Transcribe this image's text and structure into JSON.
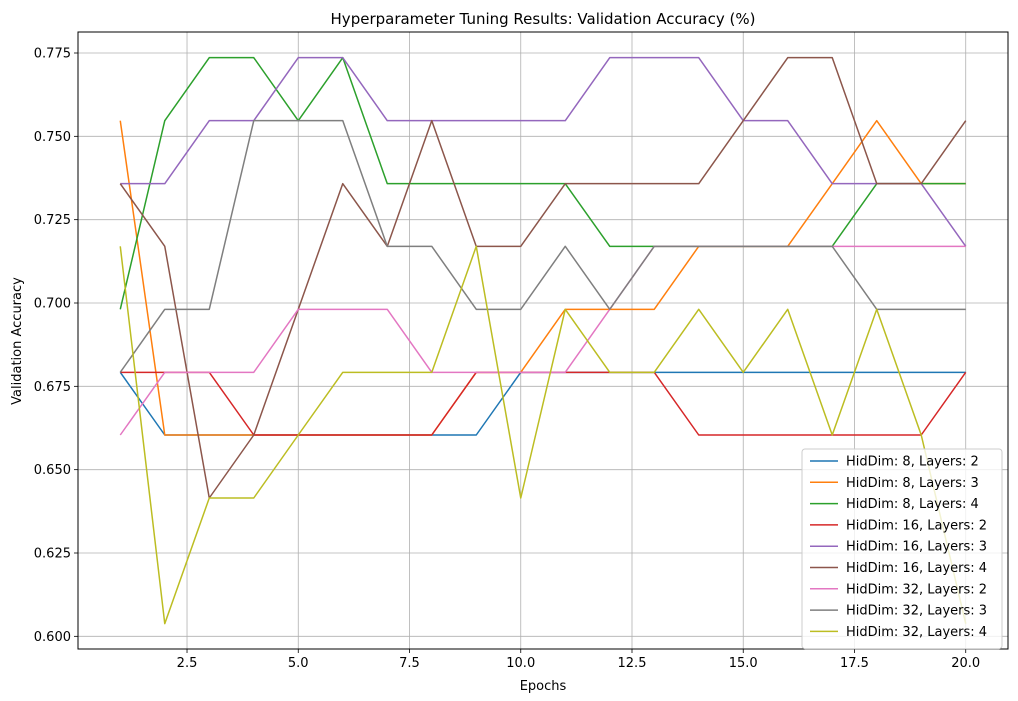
{
  "chart_data": {
    "type": "line",
    "title": "Hyperparameter Tuning Results: Validation Accuracy (%)",
    "xlabel": "Epochs",
    "ylabel": "Validation Accuracy",
    "xlim": [
      0.05,
      20.95
    ],
    "ylim": [
      0.5962,
      0.7813
    ],
    "xticks": [
      2.5,
      5.0,
      7.5,
      10.0,
      12.5,
      15.0,
      17.5,
      20.0
    ],
    "xtick_labels": [
      "2.5",
      "5.0",
      "7.5",
      "10.0",
      "12.5",
      "15.0",
      "17.5",
      "20.0"
    ],
    "yticks": [
      0.6,
      0.625,
      0.65,
      0.675,
      0.7,
      0.725,
      0.75,
      0.775
    ],
    "ytick_labels": [
      "0.600",
      "0.625",
      "0.650",
      "0.675",
      "0.700",
      "0.725",
      "0.750",
      "0.775"
    ],
    "grid": true,
    "legend_position": "lower-right",
    "x": [
      1,
      2,
      3,
      4,
      5,
      6,
      7,
      8,
      9,
      10,
      11,
      12,
      13,
      14,
      15,
      16,
      17,
      18,
      19,
      20
    ],
    "series": [
      {
        "name": "HidDim: 8, Layers: 2",
        "color": "#1f77b4",
        "values": [
          0.6792,
          0.6604,
          0.6604,
          0.6604,
          0.6604,
          0.6604,
          0.6604,
          0.6604,
          0.6604,
          0.6792,
          0.6792,
          0.6792,
          0.6792,
          0.6792,
          0.6792,
          0.6792,
          0.6792,
          0.6792,
          0.6792,
          0.6792
        ]
      },
      {
        "name": "HidDim: 8, Layers: 3",
        "color": "#ff7f0e",
        "values": [
          0.7547,
          0.6604,
          0.6604,
          0.6604,
          0.6604,
          0.6604,
          0.6604,
          0.6604,
          0.6792,
          0.6792,
          0.6981,
          0.6981,
          0.6981,
          0.717,
          0.717,
          0.717,
          0.7358,
          0.7547,
          0.7358,
          0.7358
        ]
      },
      {
        "name": "HidDim: 8, Layers: 4",
        "color": "#2ca02c",
        "values": [
          0.6981,
          0.7547,
          0.7736,
          0.7736,
          0.7547,
          0.7736,
          0.7358,
          0.7358,
          0.7358,
          0.7358,
          0.7358,
          0.717,
          0.717,
          0.717,
          0.717,
          0.717,
          0.717,
          0.7358,
          0.7358,
          0.7358
        ]
      },
      {
        "name": "HidDim: 16, Layers: 2",
        "color": "#d62728",
        "values": [
          0.6792,
          0.6792,
          0.6792,
          0.6604,
          0.6604,
          0.6604,
          0.6604,
          0.6604,
          0.6792,
          0.6792,
          0.6792,
          0.6792,
          0.6792,
          0.6604,
          0.6604,
          0.6604,
          0.6604,
          0.6604,
          0.6604,
          0.6792
        ]
      },
      {
        "name": "HidDim: 16, Layers: 3",
        "color": "#9467bd",
        "values": [
          0.7358,
          0.7358,
          0.7547,
          0.7547,
          0.7736,
          0.7736,
          0.7547,
          0.7547,
          0.7547,
          0.7547,
          0.7547,
          0.7736,
          0.7736,
          0.7736,
          0.7547,
          0.7547,
          0.7358,
          0.7358,
          0.7358,
          0.717
        ]
      },
      {
        "name": "HidDim: 16, Layers: 4",
        "color": "#8c564b",
        "values": [
          0.7358,
          0.717,
          0.6415,
          0.6604,
          0.6981,
          0.7358,
          0.717,
          0.7547,
          0.717,
          0.717,
          0.7358,
          0.7358,
          0.7358,
          0.7358,
          0.7547,
          0.7736,
          0.7736,
          0.7358,
          0.7358,
          0.7547
        ]
      },
      {
        "name": "HidDim: 32, Layers: 2",
        "color": "#e377c2",
        "values": [
          0.6604,
          0.6792,
          0.6792,
          0.6792,
          0.6981,
          0.6981,
          0.6981,
          0.6792,
          0.6792,
          0.6792,
          0.6792,
          0.6981,
          0.717,
          0.717,
          0.717,
          0.717,
          0.717,
          0.717,
          0.717,
          0.717
        ]
      },
      {
        "name": "HidDim: 32, Layers: 3",
        "color": "#7f7f7f",
        "values": [
          0.6792,
          0.6981,
          0.6981,
          0.7547,
          0.7547,
          0.7547,
          0.717,
          0.717,
          0.6981,
          0.6981,
          0.717,
          0.6981,
          0.717,
          0.717,
          0.717,
          0.717,
          0.717,
          0.6981,
          0.6981,
          0.6981
        ]
      },
      {
        "name": "HidDim: 32, Layers: 4",
        "color": "#bcbd22",
        "values": [
          0.717,
          0.6038,
          0.6415,
          0.6415,
          0.6604,
          0.6792,
          0.6792,
          0.6792,
          0.717,
          0.6415,
          0.6981,
          0.6792,
          0.6792,
          0.6981,
          0.6792,
          0.6981,
          0.6604,
          0.6981,
          0.6604,
          0.6038
        ]
      }
    ]
  }
}
